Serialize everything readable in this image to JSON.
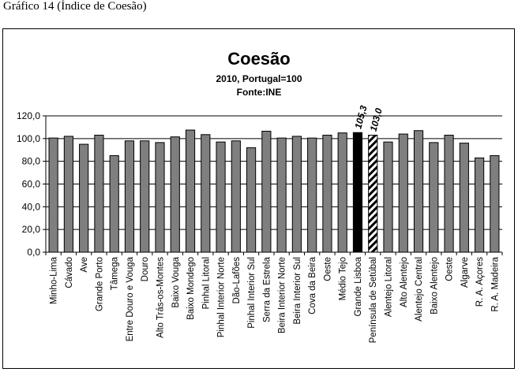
{
  "caption": "Gráfico 14 (Índice de Coesão)",
  "chart_data": {
    "type": "bar",
    "title": "Coesão",
    "subtitle": "2010, Portugal=100",
    "source": "Fonte:INE",
    "ylim": [
      0,
      120
    ],
    "yticks": [
      "0,0",
      "20,0",
      "40,0",
      "60,0",
      "80,0",
      "100,0",
      "120,0"
    ],
    "yticks_values": [
      0,
      20,
      40,
      60,
      80,
      100,
      120
    ],
    "categories": [
      "Minho-Lima",
      "Cávado",
      "Ave",
      "Grande Porto",
      "Tâmega",
      "Entre Douro e Vouga",
      "Douro",
      "Alto Trás-os-Montes",
      "Baixo Vouga",
      "Baixo Mondego",
      "Pinhal Litoral",
      "Pinhal Interior Norte",
      "Dão-Lafões",
      "Pinhal Interior Sul",
      "Serra da Estrela",
      "Beira Interior Norte",
      "Beira Interior Sul",
      "Cova da Beira",
      "Oeste",
      "Médio Tejo",
      "Grande Lisboa",
      "Península de Setúbal",
      "Alentejo Litoral",
      "Alto Alentejo",
      "Alentejo Central",
      "Baixo Alentejo",
      "Oeste",
      "Algarve",
      "R. A. Açores",
      "R. A. Madeira"
    ],
    "values": [
      100.5,
      102,
      95,
      103,
      85,
      98,
      98,
      96.5,
      101.5,
      107.5,
      103.5,
      97,
      98,
      92,
      106.5,
      100.5,
      102,
      100.5,
      103,
      105,
      105.3,
      103.0,
      97,
      104,
      107,
      96.5,
      103,
      96,
      83,
      85
    ],
    "highlight": [
      {
        "index": 20,
        "style": "solid",
        "label": "105,3"
      },
      {
        "index": 21,
        "style": "hatched",
        "label": "103,0"
      }
    ],
    "colors": {
      "bar": "#7f7f7f",
      "highlight_solid": "#000000",
      "grid": "#000000",
      "plot_bg": "#ffffff"
    }
  }
}
